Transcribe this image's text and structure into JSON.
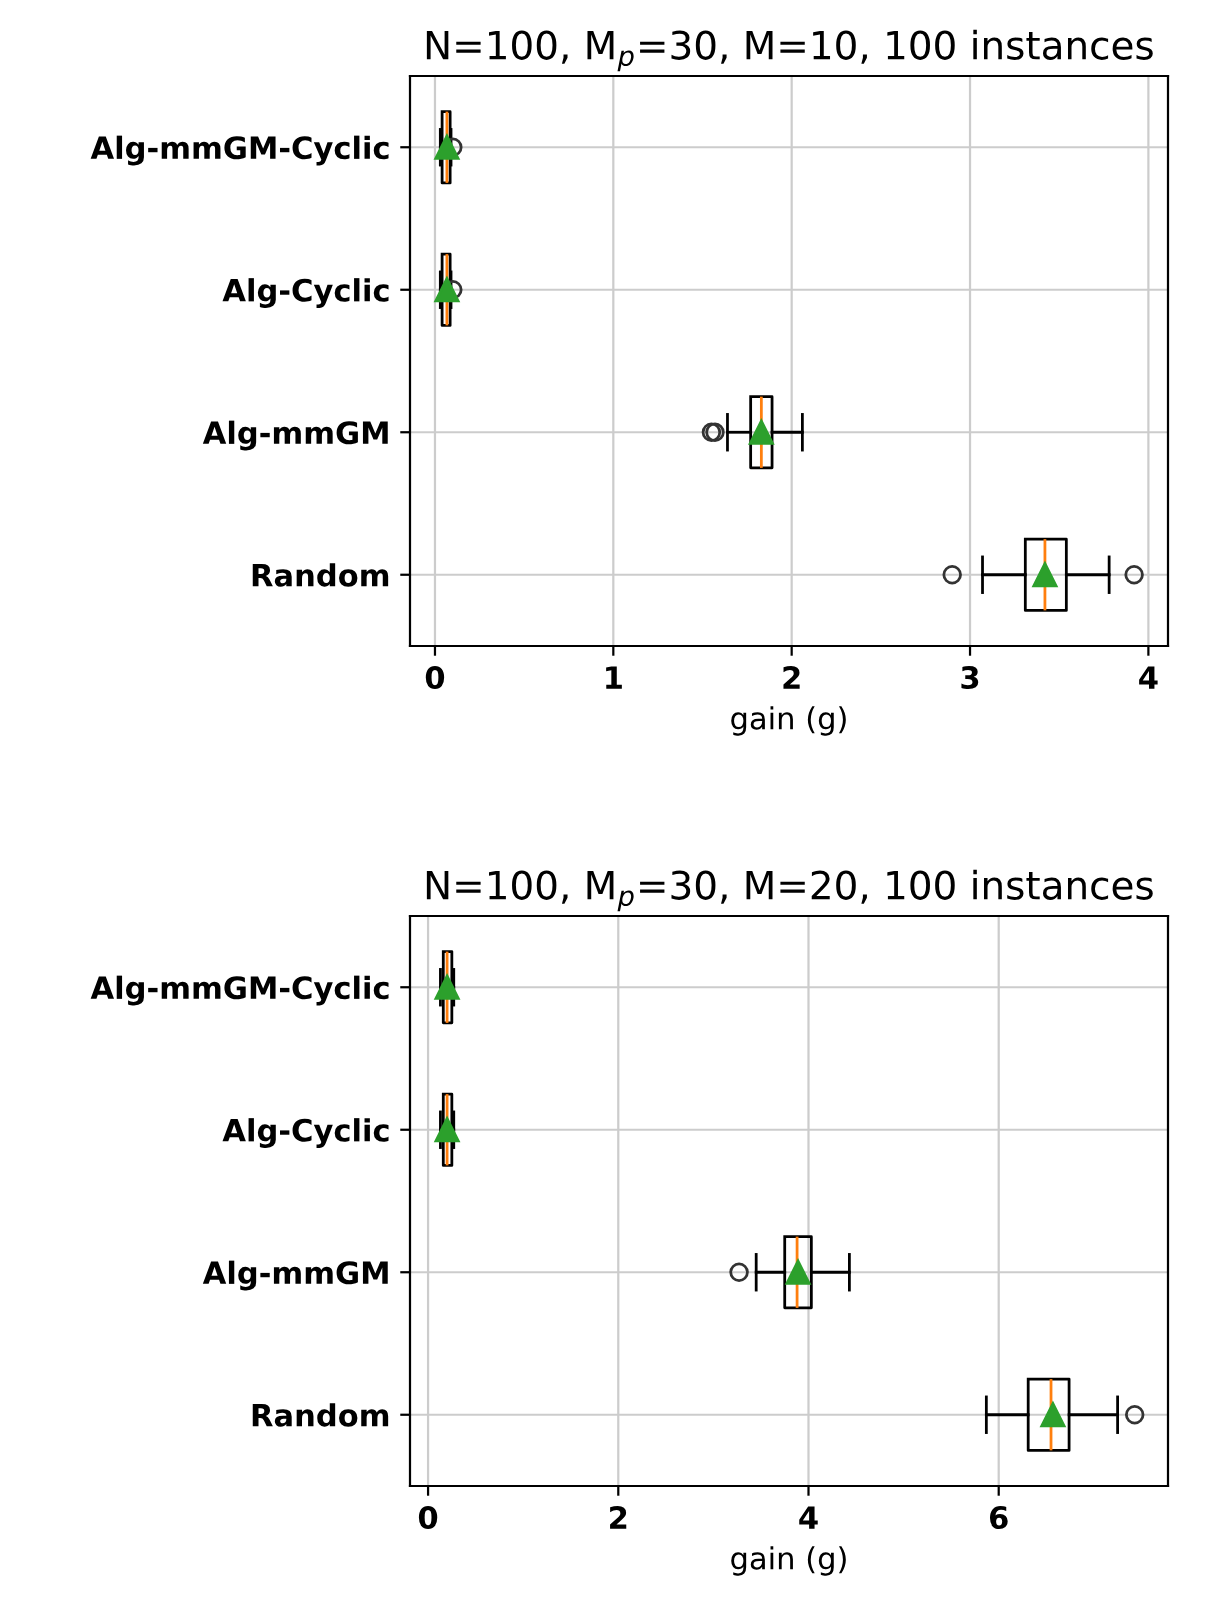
{
  "chart_data": [
    {
      "type": "box",
      "title": "N=100, M$_{p}$=30, M=10, 100 instances",
      "xlabel": "gain (g)",
      "orientation": "horizontal",
      "categories": [
        "Alg-mmGM-Cyclic",
        "Alg-Cyclic",
        "Alg-mmGM",
        "Random"
      ],
      "boxes": [
        {
          "low": 0.03,
          "q1": 0.04,
          "median": 0.067,
          "q3": 0.085,
          "high": 0.09,
          "mean": 0.067,
          "outliers": [
            0.1
          ]
        },
        {
          "low": 0.03,
          "q1": 0.04,
          "median": 0.067,
          "q3": 0.085,
          "high": 0.09,
          "mean": 0.067,
          "outliers": [
            0.1
          ]
        },
        {
          "low": 1.64,
          "q1": 1.77,
          "median": 1.83,
          "q3": 1.89,
          "high": 2.06,
          "mean": 1.83,
          "outliers": [
            1.55,
            1.57
          ]
        },
        {
          "low": 3.07,
          "q1": 3.31,
          "median": 3.42,
          "q3": 3.54,
          "high": 3.78,
          "mean": 3.42,
          "outliers": [
            2.9,
            3.92
          ]
        }
      ],
      "xlim": [
        -0.14,
        4.11
      ],
      "xticks": [
        0,
        1,
        2,
        3,
        4
      ],
      "grid": true
    },
    {
      "type": "box",
      "title": "N=100, M$_{p}$=30, M=20, 100 instances",
      "xlabel": "gain (g)",
      "orientation": "horizontal",
      "categories": [
        "Alg-mmGM-Cyclic",
        "Alg-Cyclic",
        "Alg-mmGM",
        "Random"
      ],
      "boxes": [
        {
          "low": 0.13,
          "q1": 0.16,
          "median": 0.2,
          "q3": 0.25,
          "high": 0.27,
          "mean": 0.2
        },
        {
          "low": 0.13,
          "q1": 0.16,
          "median": 0.2,
          "q3": 0.25,
          "high": 0.27,
          "mean": 0.2
        },
        {
          "low": 3.45,
          "q1": 3.75,
          "median": 3.88,
          "q3": 4.03,
          "high": 4.43,
          "mean": 3.89,
          "outliers": [
            3.27
          ]
        },
        {
          "low": 5.87,
          "q1": 6.31,
          "median": 6.55,
          "q3": 6.74,
          "high": 7.25,
          "mean": 6.57,
          "outliers": [
            7.43
          ]
        }
      ],
      "xlim": [
        -0.19,
        7.78
      ],
      "xticks": [
        0,
        2,
        4,
        6
      ],
      "grid": true
    }
  ]
}
